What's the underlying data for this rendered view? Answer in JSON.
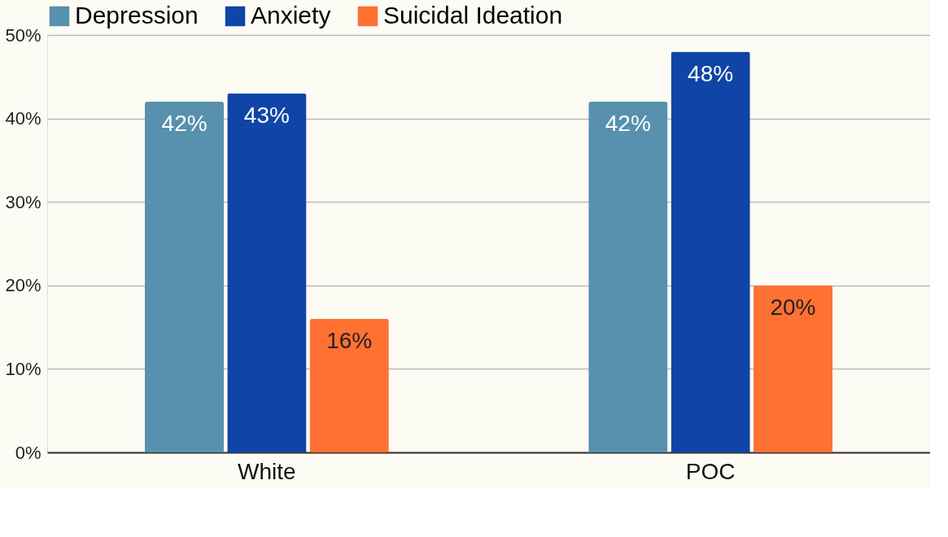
{
  "chart_data": {
    "type": "bar",
    "categories": [
      "White",
      "POC"
    ],
    "series": [
      {
        "name": "Depression",
        "color": "#5891ad",
        "values": [
          42,
          42
        ],
        "value_labels": [
          "42%",
          "42%"
        ]
      },
      {
        "name": "Anxiety",
        "color": "#1045a8",
        "values": [
          43,
          48
        ],
        "value_labels": [
          "43%",
          "48%"
        ]
      },
      {
        "name": "Suicidal Ideation",
        "color": "#ff7033",
        "values": [
          16,
          20
        ],
        "value_labels": [
          "16%",
          "20%"
        ]
      }
    ],
    "ylim": [
      0,
      50
    ],
    "yticks": [
      {
        "value": 0,
        "label": "0%"
      },
      {
        "value": 10,
        "label": "10%"
      },
      {
        "value": 20,
        "label": "20%"
      },
      {
        "value": 30,
        "label": "30%"
      },
      {
        "value": 40,
        "label": "40%"
      },
      {
        "value": 50,
        "label": "50%"
      }
    ],
    "grid": "y",
    "legend": "top"
  }
}
